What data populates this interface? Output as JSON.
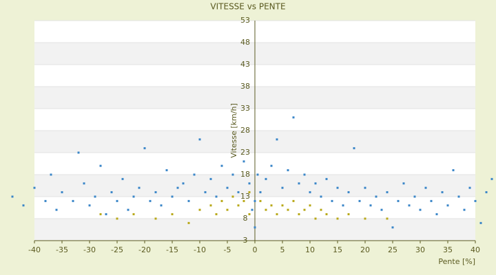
{
  "chart_data": {
    "type": "scatter",
    "title": "VITESSE vs PENTE",
    "xlabel": "Pente [%]",
    "ylabel": "Vitesse [km/h]",
    "xlim": [
      -40,
      40
    ],
    "xticks": [
      -40,
      -35,
      -30,
      -25,
      -20,
      -15,
      -10,
      -5,
      0,
      5,
      10,
      15,
      20,
      25,
      30,
      35,
      40
    ],
    "ylim": [
      3,
      53
    ],
    "yticks": [
      3,
      8,
      13,
      18,
      23,
      28,
      33,
      38,
      43,
      48,
      53
    ],
    "grid": true,
    "series": [
      {
        "color": "#3a86c8",
        "x": [
          -44,
          -42,
          -40,
          -38,
          -37,
          -36,
          -35,
          -33,
          -32,
          -31,
          -30,
          -29,
          -28,
          -27,
          -26,
          -25,
          -24,
          -23,
          -22,
          -21,
          -20,
          -19,
          -18,
          -17,
          -16,
          -15,
          -14,
          -13,
          -12,
          -11,
          -10,
          -9,
          -8,
          -7,
          -6,
          -5,
          -4,
          -3,
          -2,
          -1,
          -0.5,
          0,
          0,
          0.5,
          1,
          2,
          3,
          4,
          5,
          6,
          7,
          8,
          9,
          10,
          11,
          12,
          13,
          14,
          15,
          16,
          17,
          18,
          19,
          20,
          21,
          22,
          23,
          24,
          25,
          26,
          27,
          28,
          29,
          30,
          31,
          32,
          33,
          34,
          35,
          36,
          37,
          38,
          39,
          40,
          41,
          42,
          43
        ],
        "values": [
          13,
          11,
          15,
          12,
          18,
          10,
          14,
          12,
          23,
          16,
          11,
          13,
          20,
          9,
          14,
          12,
          17,
          10,
          13,
          15,
          24,
          12,
          14,
          11,
          19,
          13,
          15,
          16,
          12,
          18,
          26,
          14,
          17,
          13,
          20,
          15,
          18,
          14,
          21,
          16,
          10,
          6,
          12,
          18,
          14,
          17,
          20,
          26,
          15,
          19,
          31,
          16,
          18,
          14,
          16,
          13,
          17,
          12,
          15,
          11,
          14,
          24,
          12,
          15,
          11,
          13,
          10,
          14,
          6,
          12,
          16,
          11,
          13,
          10,
          15,
          12,
          9,
          14,
          11,
          19,
          13,
          10,
          15,
          12,
          7,
          14,
          17
        ]
      },
      {
        "color": "#b8a818",
        "x": [
          -28,
          -25,
          -22,
          -18,
          -15,
          -12,
          -10,
          -8,
          -7,
          -6,
          -5,
          -4,
          -3,
          -2,
          -1,
          -1,
          1,
          2,
          3,
          4,
          5,
          6,
          7,
          8,
          9,
          10,
          11,
          12,
          13,
          15,
          17,
          20,
          24
        ],
        "values": [
          9,
          8,
          9,
          8,
          9,
          7,
          10,
          11,
          9,
          12,
          10,
          13,
          11,
          12,
          9,
          14,
          12,
          10,
          11,
          9,
          11,
          10,
          12,
          9,
          10,
          11,
          8,
          10,
          9,
          8,
          9,
          8,
          8
        ]
      }
    ]
  }
}
